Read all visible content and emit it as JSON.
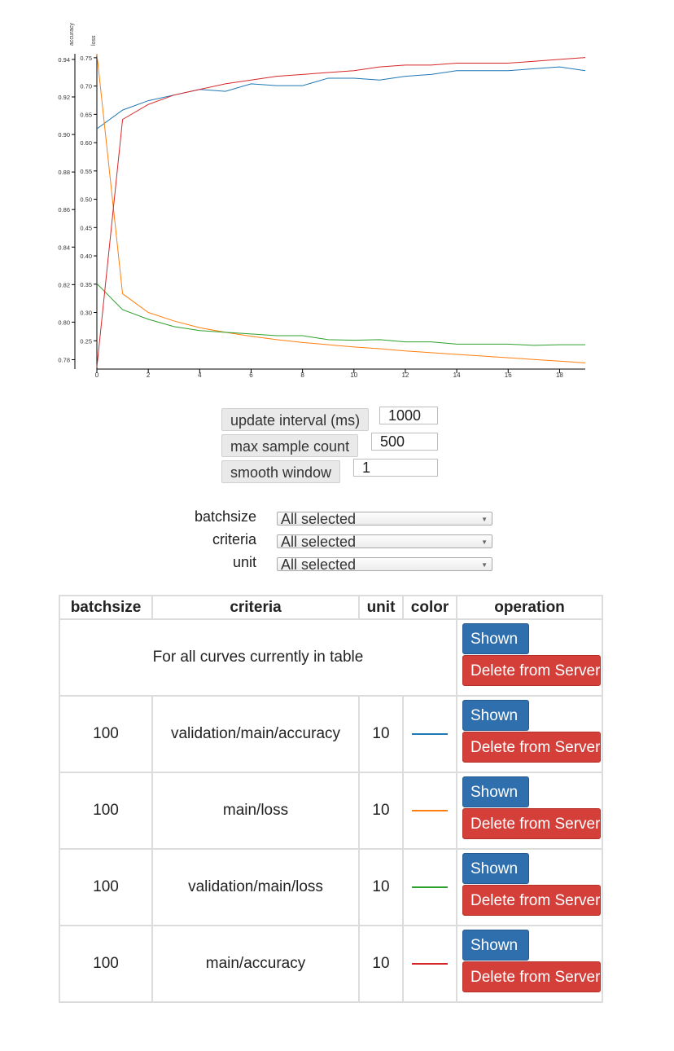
{
  "chart_data": {
    "type": "line",
    "x": [
      0,
      1,
      2,
      3,
      4,
      5,
      6,
      7,
      8,
      9,
      10,
      11,
      12,
      13,
      14,
      15,
      16,
      17,
      18,
      19
    ],
    "xlim": [
      0,
      19
    ],
    "x_ticks": [
      "0",
      "2",
      "4",
      "6",
      "8",
      "10",
      "12",
      "14",
      "16",
      "18"
    ],
    "axes": [
      {
        "label": "accuracy",
        "ylim": [
          0.775,
          0.943
        ],
        "ticks": [
          "0.78",
          "0.80",
          "0.82",
          "0.84",
          "0.86",
          "0.88",
          "0.90",
          "0.92",
          "0.94"
        ]
      },
      {
        "label": "loss",
        "ylim": [
          0.2,
          0.757
        ],
        "ticks": [
          "0.25",
          "0.30",
          "0.35",
          "0.40",
          "0.45",
          "0.50",
          "0.55",
          "0.60",
          "0.65",
          "0.70",
          "0.75"
        ]
      }
    ],
    "series": [
      {
        "name": "validation/main/accuracy",
        "axis": "accuracy",
        "color": "#1f77b4",
        "values": [
          0.903,
          0.913,
          0.918,
          0.921,
          0.924,
          0.923,
          0.927,
          0.926,
          0.926,
          0.93,
          0.93,
          0.929,
          0.931,
          0.932,
          0.934,
          0.934,
          0.934,
          0.935,
          0.936,
          0.934
        ]
      },
      {
        "name": "main/loss",
        "axis": "loss",
        "color": "#ff7f0e",
        "values": [
          0.757,
          0.333,
          0.3,
          0.285,
          0.273,
          0.265,
          0.258,
          0.252,
          0.247,
          0.243,
          0.239,
          0.236,
          0.232,
          0.229,
          0.226,
          0.223,
          0.22,
          0.217,
          0.214,
          0.211
        ]
      },
      {
        "name": "validation/main/loss",
        "axis": "loss",
        "color": "#2ca02c",
        "values": [
          0.351,
          0.305,
          0.288,
          0.275,
          0.268,
          0.265,
          0.262,
          0.259,
          0.259,
          0.252,
          0.251,
          0.252,
          0.248,
          0.248,
          0.244,
          0.244,
          0.244,
          0.242,
          0.243,
          0.243
        ]
      },
      {
        "name": "main/accuracy",
        "axis": "accuracy",
        "color": "#d62728",
        "values": [
          0.776,
          0.908,
          0.916,
          0.921,
          0.924,
          0.927,
          0.929,
          0.931,
          0.932,
          0.933,
          0.934,
          0.936,
          0.937,
          0.937,
          0.938,
          0.938,
          0.938,
          0.939,
          0.94,
          0.941
        ]
      }
    ]
  },
  "controls": {
    "update_interval": {
      "label": "update interval (ms)",
      "value": "1000"
    },
    "max_sample_count": {
      "label": "max sample count",
      "value": "500"
    },
    "smooth_window": {
      "label": "smooth window",
      "value": "1"
    }
  },
  "filters": [
    {
      "label": "batchsize",
      "value": "All selected"
    },
    {
      "label": "criteria",
      "value": "All selected"
    },
    {
      "label": "unit",
      "value": "All selected"
    }
  ],
  "table": {
    "headers": {
      "batchsize": "batchsize",
      "criteria": "criteria",
      "unit": "unit",
      "color": "color",
      "operation": "operation"
    },
    "all_row_text": "For all curves currently in table",
    "shown_label": "Shown",
    "delete_label": "Delete from Server",
    "rows": [
      {
        "batchsize": "100",
        "criteria": "validation/main/accuracy",
        "unit": "10",
        "color": "#1f77b4"
      },
      {
        "batchsize": "100",
        "criteria": "main/loss",
        "unit": "10",
        "color": "#ff7f0e"
      },
      {
        "batchsize": "100",
        "criteria": "validation/main/loss",
        "unit": "10",
        "color": "#2ca02c"
      },
      {
        "batchsize": "100",
        "criteria": "main/accuracy",
        "unit": "10",
        "color": "#d62728"
      }
    ]
  }
}
